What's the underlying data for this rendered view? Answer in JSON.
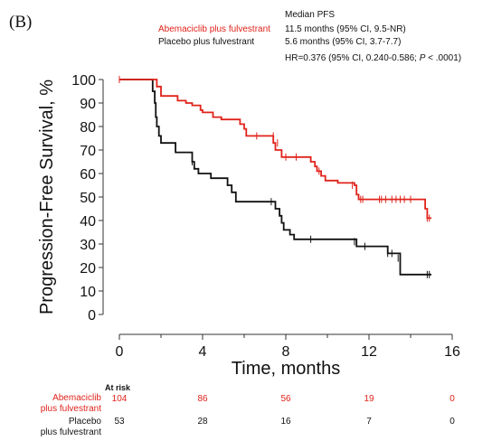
{
  "panel_label": "(B)",
  "legend": {
    "heading": "Median PFS",
    "rows": [
      {
        "name": "Abemaciclib plus fulvestrant",
        "value": "11.5 months (95% CI, 9.5-NR)",
        "color": "#e0231b"
      },
      {
        "name": "Placebo plus fulvestrant",
        "value": "5.6 months (95% CI, 3.7-7.7)",
        "color": "#111111"
      }
    ],
    "hr_main": "HR=0.376 (95% CI, 0.240-0.586; ",
    "hr_p": "P",
    "hr_tail": " < .0001)"
  },
  "at_risk": {
    "heading": "At risk",
    "rows": [
      {
        "label_line1": "Abemaciclib",
        "label_line2": "plus fulvestrant",
        "color": "#e0231b",
        "values": [
          "104",
          "86",
          "56",
          "19",
          "0"
        ]
      },
      {
        "label_line1": "Placebo",
        "label_line2": "plus fulvestrant",
        "color": "#111111",
        "values": [
          "53",
          "28",
          "16",
          "7",
          "0"
        ]
      }
    ]
  },
  "chart_data": {
    "type": "line",
    "step": true,
    "xlabel": "Time, months",
    "ylabel": "Progression-Free Survival, %",
    "xlim": [
      0,
      16
    ],
    "ylim": [
      0,
      100
    ],
    "xticks": [
      0,
      4,
      8,
      12,
      16
    ],
    "yticks": [
      0,
      10,
      20,
      30,
      40,
      50,
      60,
      70,
      80,
      90,
      100
    ],
    "grid": false,
    "series": [
      {
        "name": "Abemaciclib plus fulvestrant",
        "color": "#e0231b",
        "points": [
          [
            0,
            100
          ],
          [
            1.4,
            100
          ],
          [
            1.8,
            97
          ],
          [
            2.0,
            93
          ],
          [
            2.6,
            93
          ],
          [
            2.8,
            91
          ],
          [
            3.2,
            90
          ],
          [
            3.5,
            89
          ],
          [
            3.9,
            87
          ],
          [
            4.0,
            86
          ],
          [
            4.5,
            84
          ],
          [
            4.9,
            83
          ],
          [
            5.7,
            83
          ],
          [
            5.8,
            81
          ],
          [
            6.0,
            79
          ],
          [
            6.1,
            76
          ],
          [
            7.3,
            76
          ],
          [
            7.4,
            73
          ],
          [
            7.5,
            70
          ],
          [
            7.8,
            67
          ],
          [
            8.8,
            67
          ],
          [
            9.2,
            65
          ],
          [
            9.4,
            63
          ],
          [
            9.5,
            61
          ],
          [
            9.7,
            59
          ],
          [
            9.9,
            57
          ],
          [
            10.5,
            56
          ],
          [
            11.3,
            55
          ],
          [
            11.4,
            51
          ],
          [
            11.5,
            49
          ],
          [
            14.6,
            49
          ],
          [
            14.7,
            45
          ],
          [
            14.8,
            41
          ],
          [
            15.0,
            41
          ]
        ],
        "censored": [
          [
            0,
            100
          ],
          [
            6.6,
            76
          ],
          [
            7.4,
            76
          ],
          [
            7.6,
            73
          ],
          [
            8.0,
            67
          ],
          [
            8.5,
            67
          ],
          [
            9.6,
            61
          ],
          [
            11.2,
            55
          ],
          [
            11.6,
            49
          ],
          [
            11.7,
            49
          ],
          [
            12.5,
            49
          ],
          [
            12.6,
            49
          ],
          [
            12.8,
            49
          ],
          [
            13.1,
            49
          ],
          [
            13.3,
            49
          ],
          [
            13.5,
            49
          ],
          [
            13.7,
            49
          ],
          [
            14.0,
            49
          ],
          [
            14.8,
            41
          ],
          [
            14.9,
            41
          ]
        ]
      },
      {
        "name": "Placebo plus fulvestrant",
        "color": "#111111",
        "points": [
          [
            0,
            100
          ],
          [
            1.4,
            100
          ],
          [
            1.6,
            95
          ],
          [
            1.7,
            90
          ],
          [
            1.75,
            84
          ],
          [
            1.8,
            80
          ],
          [
            1.9,
            76
          ],
          [
            2.0,
            73
          ],
          [
            2.6,
            73
          ],
          [
            2.7,
            69
          ],
          [
            3.4,
            69
          ],
          [
            3.5,
            65
          ],
          [
            3.6,
            62
          ],
          [
            3.8,
            60
          ],
          [
            4.4,
            58
          ],
          [
            5.1,
            58
          ],
          [
            5.2,
            55
          ],
          [
            5.4,
            52
          ],
          [
            5.6,
            48
          ],
          [
            7.4,
            48
          ],
          [
            7.5,
            45
          ],
          [
            7.7,
            42
          ],
          [
            7.8,
            39
          ],
          [
            7.9,
            36
          ],
          [
            8.2,
            34
          ],
          [
            8.4,
            32
          ],
          [
            11.3,
            32
          ],
          [
            11.4,
            29
          ],
          [
            12.8,
            29
          ],
          [
            12.9,
            26
          ],
          [
            13.4,
            26
          ],
          [
            13.5,
            17
          ],
          [
            15.0,
            17
          ]
        ],
        "censored": [
          [
            3.5,
            65
          ],
          [
            7.3,
            48
          ],
          [
            9.2,
            32
          ],
          [
            11.3,
            31
          ],
          [
            11.8,
            29
          ],
          [
            12.9,
            26
          ],
          [
            13.1,
            26
          ],
          [
            13.4,
            24
          ],
          [
            14.8,
            17
          ],
          [
            14.9,
            17
          ]
        ]
      }
    ]
  }
}
